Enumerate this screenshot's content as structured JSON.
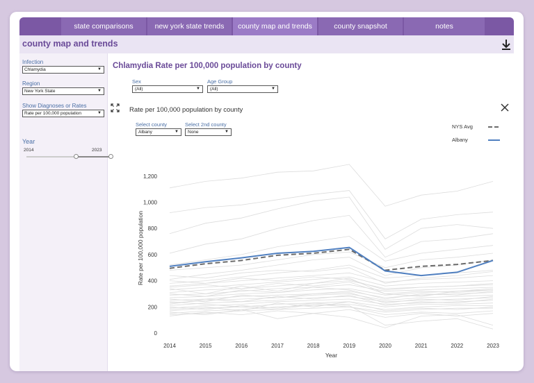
{
  "tabs": [
    {
      "label": "state comparisons"
    },
    {
      "label": "new york state trends"
    },
    {
      "label": "county map and trends",
      "active": true
    },
    {
      "label": "county snapshot"
    },
    {
      "label": "notes"
    }
  ],
  "header": {
    "title": "county map and trends"
  },
  "sidebar": {
    "infection_label": "Infection",
    "infection_value": "Chlamydia",
    "region_label": "Region",
    "region_value": "New York State",
    "show_label": "Show Diagnoses or Rates",
    "show_value": "Rate per 100,000 population",
    "year_label": "Year",
    "year_min": "2014",
    "year_max": "2023"
  },
  "main": {
    "title": "Chlamydia Rate per 100,000 population by county",
    "sex_label": "Sex",
    "sex_value": "(All)",
    "age_label": "Age Group",
    "age_value": "(All)",
    "chart_title": "Rate per 100,000 population by county",
    "county_label": "Select county",
    "county_value": "Albany",
    "county2_label": "Select 2nd county",
    "county2_value": "None",
    "legend_nys": "NYS Avg",
    "legend_county": "Albany"
  },
  "colors": {
    "accent": "#7b58a4",
    "nys_avg": "#6b6b6b",
    "county": "#4f7fc0",
    "background_lines": "#dcdcdc"
  },
  "chart_data": {
    "type": "line",
    "title": "Rate per 100,000 population by county",
    "xlabel": "Year",
    "ylabel": "Rate per 100,000 population",
    "ylim": [
      0,
      1300
    ],
    "yticks": [
      "0",
      "200",
      "400",
      "600",
      "800",
      "1,000",
      "1,200"
    ],
    "x": [
      2014,
      2015,
      2016,
      2017,
      2018,
      2019,
      2020,
      2021,
      2022,
      2023
    ],
    "series": [
      {
        "name": "NYS Avg",
        "values": [
          495,
          530,
          555,
          595,
          610,
          640,
          480,
          510,
          525,
          555
        ]
      },
      {
        "name": "Albany",
        "values": [
          510,
          545,
          575,
          610,
          625,
          655,
          475,
          440,
          465,
          555
        ]
      }
    ],
    "background_series": [
      [
        1110,
        1160,
        1185,
        1230,
        1240,
        1290,
        970,
        1055,
        1085,
        1160
      ],
      [
        920,
        960,
        980,
        1020,
        1060,
        1090,
        720,
        870,
        905,
        925
      ],
      [
        760,
        840,
        880,
        950,
        1010,
        1040,
        640,
        800,
        830,
        800
      ],
      [
        610,
        680,
        720,
        800,
        860,
        900,
        580,
        700,
        720,
        760
      ],
      [
        520,
        560,
        600,
        660,
        700,
        740,
        550,
        610,
        640,
        670
      ],
      [
        480,
        500,
        520,
        560,
        600,
        620,
        500,
        560,
        580,
        610
      ],
      [
        410,
        450,
        480,
        520,
        560,
        580,
        440,
        500,
        520,
        560
      ],
      [
        380,
        400,
        430,
        460,
        480,
        520,
        420,
        440,
        460,
        480
      ],
      [
        360,
        380,
        400,
        420,
        440,
        460,
        390,
        410,
        420,
        440
      ],
      [
        330,
        350,
        370,
        390,
        410,
        430,
        360,
        380,
        390,
        400
      ],
      [
        310,
        330,
        340,
        360,
        380,
        400,
        340,
        350,
        360,
        380
      ],
      [
        290,
        300,
        320,
        340,
        350,
        370,
        320,
        330,
        340,
        350
      ],
      [
        270,
        280,
        300,
        310,
        330,
        340,
        290,
        310,
        320,
        330
      ],
      [
        250,
        260,
        280,
        290,
        300,
        320,
        270,
        290,
        300,
        310
      ],
      [
        230,
        250,
        260,
        270,
        290,
        300,
        250,
        270,
        280,
        290
      ],
      [
        210,
        230,
        240,
        250,
        270,
        280,
        240,
        250,
        260,
        270
      ],
      [
        190,
        210,
        220,
        240,
        250,
        260,
        220,
        230,
        240,
        250
      ],
      [
        170,
        190,
        200,
        220,
        230,
        240,
        200,
        220,
        220,
        230
      ],
      [
        150,
        170,
        180,
        200,
        210,
        220,
        180,
        200,
        210,
        210
      ],
      [
        140,
        150,
        170,
        180,
        190,
        200,
        160,
        180,
        190,
        190
      ],
      [
        300,
        280,
        330,
        310,
        350,
        330,
        260,
        300,
        290,
        320
      ],
      [
        260,
        240,
        290,
        270,
        300,
        310,
        230,
        260,
        250,
        280
      ],
      [
        220,
        260,
        240,
        280,
        260,
        290,
        210,
        240,
        230,
        260
      ],
      [
        180,
        200,
        170,
        230,
        200,
        240,
        170,
        190,
        180,
        200
      ],
      [
        130,
        160,
        140,
        170,
        150,
        180,
        120,
        150,
        130,
        150
      ],
      [
        350,
        370,
        340,
        380,
        360,
        390,
        300,
        320,
        310,
        330
      ],
      [
        400,
        380,
        420,
        400,
        430,
        410,
        330,
        350,
        360,
        370
      ],
      [
        200,
        180,
        210,
        190,
        230,
        210,
        60,
        90,
        110,
        30
      ],
      [
        160,
        140,
        180,
        110,
        150,
        120,
        40,
        130,
        140,
        60
      ],
      [
        440,
        420,
        460,
        480,
        470,
        500,
        380,
        420,
        440,
        470
      ],
      [
        340,
        300,
        360,
        320,
        380,
        420,
        300,
        280,
        320,
        340
      ],
      [
        240,
        220,
        200,
        180,
        220,
        200,
        140,
        160,
        150,
        170
      ]
    ]
  }
}
